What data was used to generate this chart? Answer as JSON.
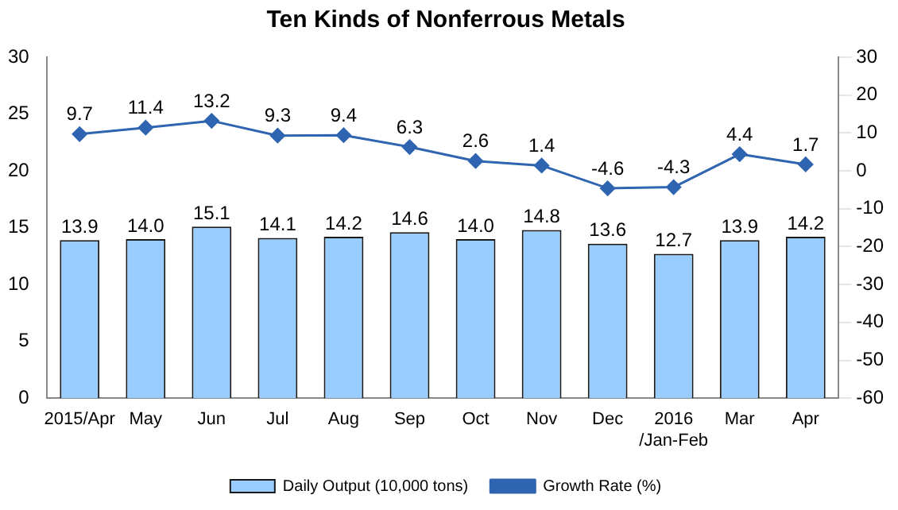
{
  "chart_data": {
    "type": "bar",
    "title": "Ten Kinds of Nonferrous Metals",
    "categories": [
      "2015/Apr",
      "May",
      "Jun",
      "Jul",
      "Aug",
      "Sep",
      "Oct",
      "Nov",
      "Dec",
      "2016\n/Jan-Feb",
      "Mar",
      "Apr"
    ],
    "series": [
      {
        "name": "Daily Output (10,000 tons)",
        "color": "#99ccff",
        "values": [
          13.9,
          14.0,
          15.1,
          14.1,
          14.2,
          14.6,
          14.0,
          14.8,
          13.6,
          12.7,
          13.9,
          14.2
        ],
        "value_labels": [
          "13.9",
          "14.0",
          "15.1",
          "14.1",
          "14.2",
          "14.6",
          "14.0",
          "14.8",
          "13.6",
          "12.7",
          "13.9",
          "14.2"
        ]
      },
      {
        "name": "Growth Rate (%)",
        "type": "line",
        "axis": "y2",
        "color": "#2e64b0",
        "values": [
          9.7,
          11.4,
          13.2,
          9.3,
          9.4,
          6.3,
          2.6,
          1.4,
          -4.6,
          -4.3,
          4.4,
          1.7
        ],
        "value_labels": [
          "9.7",
          "11.4",
          "13.2",
          "9.3",
          "9.4",
          "6.3",
          "2.6",
          "1.4",
          "-4.6",
          "-4.3",
          "4.4",
          "1.7"
        ]
      }
    ],
    "ylim": [
      0,
      30
    ],
    "yticks": [
      0,
      5,
      10,
      15,
      20,
      25,
      30
    ],
    "y2lim": [
      -60,
      30
    ],
    "y2ticks": [
      -60,
      -50,
      -40,
      -30,
      -20,
      -10,
      0,
      10,
      20,
      30
    ],
    "legend": "bottom",
    "marker": "diamond",
    "grid": false
  }
}
